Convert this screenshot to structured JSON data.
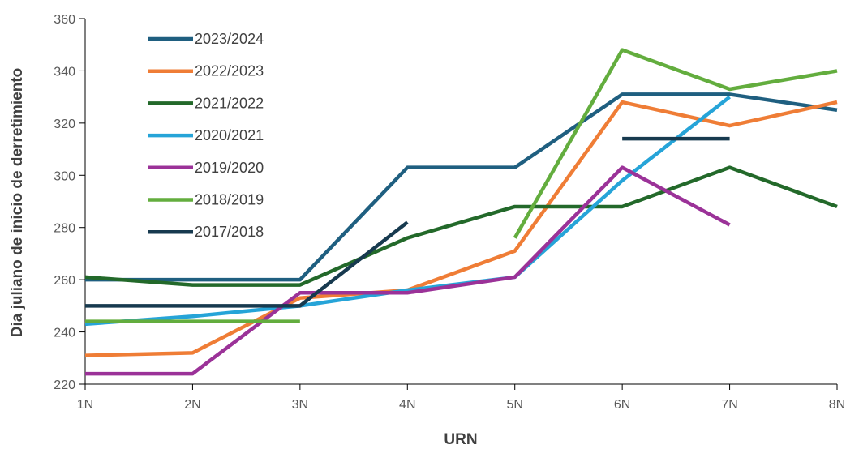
{
  "chart_data": {
    "type": "line",
    "xlabel": "URN",
    "ylabel": "Dia juliano de inicio de derretimiento",
    "categories": [
      "1N",
      "2N",
      "3N",
      "4N",
      "5N",
      "6N",
      "7N",
      "8N"
    ],
    "ylim": [
      220,
      360
    ],
    "yticks": [
      220,
      240,
      260,
      280,
      300,
      320,
      340,
      360
    ],
    "grid": false,
    "legend_position": "top-left",
    "series": [
      {
        "name": "2023/2024",
        "color": "#1f5f80",
        "values": [
          260,
          260,
          260,
          303,
          303,
          331,
          331,
          325
        ]
      },
      {
        "name": "2022/2023",
        "color": "#ef7d36",
        "values": [
          231,
          232,
          253,
          256,
          271,
          328,
          319,
          328
        ]
      },
      {
        "name": "2021/2022",
        "color": "#23692a",
        "values": [
          261,
          258,
          258,
          276,
          288,
          288,
          303,
          288
        ]
      },
      {
        "name": "2020/2021",
        "color": "#26a4d8",
        "values": [
          243,
          246,
          250,
          256,
          261,
          298,
          330,
          null
        ]
      },
      {
        "name": "2019/2020",
        "color": "#9b3298",
        "values": [
          224,
          224,
          255,
          255,
          261,
          303,
          281,
          null
        ]
      },
      {
        "name": "2018/2019",
        "color": "#63ad3e",
        "values": [
          244,
          244,
          244,
          null,
          276,
          348,
          333,
          340
        ]
      },
      {
        "name": "2017/2018",
        "color": "#173a4f",
        "values": [
          250,
          250,
          250,
          282,
          null,
          314,
          314,
          null
        ]
      }
    ]
  }
}
